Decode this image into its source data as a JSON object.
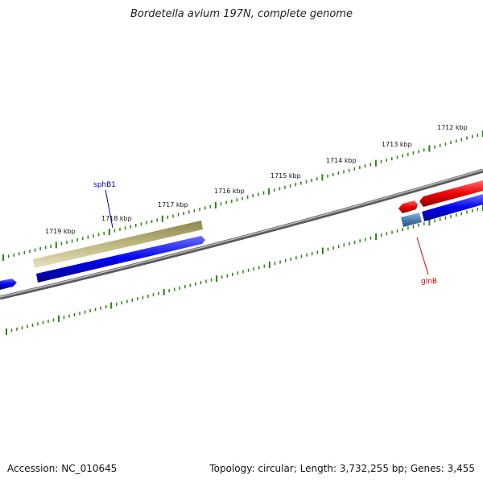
{
  "title": "Bordetella avium 197N, complete genome",
  "footer": {
    "accession": "Accession: NC_010645",
    "summary": "Topology: circular; Length: 3,732,255 bp; Genes: 3,455"
  },
  "colors": {
    "backbone": "#808080",
    "ticks": "#2e7d12",
    "forward_gene": "#ee0000",
    "reverse_gene": "#0000ee",
    "sphB1_feature": "#b9b27a",
    "glnB_small": "#4a7fb5",
    "sphB1_label": "#0000aa",
    "glnB_label": "#cc0000"
  },
  "ticks": [
    {
      "label": "1712 kbp"
    },
    {
      "label": "1713 kbp"
    },
    {
      "label": "1714 kbp"
    },
    {
      "label": "1715 kbp"
    },
    {
      "label": "1716 kbp"
    },
    {
      "label": "1717 kbp"
    },
    {
      "label": "1718 kbp"
    },
    {
      "label": "1719 kbp"
    }
  ],
  "genes": {
    "sphB1": {
      "label": "sphB1"
    },
    "glnB": {
      "label": "glnB"
    }
  }
}
